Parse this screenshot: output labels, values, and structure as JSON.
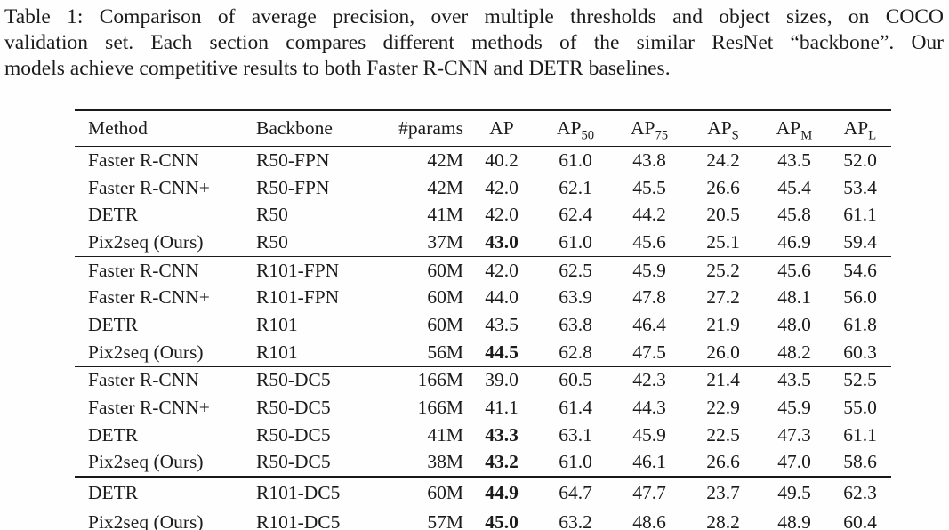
{
  "caption": {
    "lines": [
      "Table 1: Comparison of average precision, over multiple thresholds and object sizes, on COCO",
      "validation set. Each section compares different methods of the similar ResNet “backbone”. Our",
      "models achieve competitive results to both Faster R-CNN and DETR baselines."
    ]
  },
  "table": {
    "columns": [
      {
        "label": "Method",
        "sub": ""
      },
      {
        "label": "Backbone",
        "sub": ""
      },
      {
        "label": "#params",
        "sub": ""
      },
      {
        "label": "AP",
        "sub": ""
      },
      {
        "label": "AP",
        "sub": "50"
      },
      {
        "label": "AP",
        "sub": "75"
      },
      {
        "label": "AP",
        "sub": "S"
      },
      {
        "label": "AP",
        "sub": "M"
      },
      {
        "label": "AP",
        "sub": "L"
      }
    ],
    "sections": [
      {
        "rows": [
          {
            "cells": [
              "Faster R-CNN",
              "R50-FPN",
              "42M",
              "40.2",
              "61.0",
              "43.8",
              "24.2",
              "43.5",
              "52.0"
            ],
            "bold": []
          },
          {
            "cells": [
              "Faster R-CNN+",
              "R50-FPN",
              "42M",
              "42.0",
              "62.1",
              "45.5",
              "26.6",
              "45.4",
              "53.4"
            ],
            "bold": []
          },
          {
            "cells": [
              "DETR",
              "R50",
              "41M",
              "42.0",
              "62.4",
              "44.2",
              "20.5",
              "45.8",
              "61.1"
            ],
            "bold": []
          },
          {
            "cells": [
              "Pix2seq (Ours)",
              "R50",
              "37M",
              "43.0",
              "61.0",
              "45.6",
              "25.1",
              "46.9",
              "59.4"
            ],
            "bold": [
              3
            ]
          }
        ]
      },
      {
        "rows": [
          {
            "cells": [
              "Faster R-CNN",
              "R101-FPN",
              "60M",
              "42.0",
              "62.5",
              "45.9",
              "25.2",
              "45.6",
              "54.6"
            ],
            "bold": []
          },
          {
            "cells": [
              "Faster R-CNN+",
              "R101-FPN",
              "60M",
              "44.0",
              "63.9",
              "47.8",
              "27.2",
              "48.1",
              "56.0"
            ],
            "bold": []
          },
          {
            "cells": [
              "DETR",
              "R101",
              "60M",
              "43.5",
              "63.8",
              "46.4",
              "21.9",
              "48.0",
              "61.8"
            ],
            "bold": []
          },
          {
            "cells": [
              "Pix2seq (Ours)",
              "R101",
              "56M",
              "44.5",
              "62.8",
              "47.5",
              "26.0",
              "48.2",
              "60.3"
            ],
            "bold": [
              3
            ]
          }
        ]
      },
      {
        "rows": [
          {
            "cells": [
              "Faster R-CNN",
              "R50-DC5",
              "166M",
              "39.0",
              "60.5",
              "42.3",
              "21.4",
              "43.5",
              "52.5"
            ],
            "bold": []
          },
          {
            "cells": [
              "Faster R-CNN+",
              "R50-DC5",
              "166M",
              "41.1",
              "61.4",
              "44.3",
              "22.9",
              "45.9",
              "55.0"
            ],
            "bold": []
          },
          {
            "cells": [
              "DETR",
              "R50-DC5",
              "41M",
              "43.3",
              "63.1",
              "45.9",
              "22.5",
              "47.3",
              "61.1"
            ],
            "bold": [
              3
            ]
          },
          {
            "cells": [
              "Pix2seq (Ours)",
              "R50-DC5",
              "38M",
              "43.2",
              "61.0",
              "46.1",
              "26.6",
              "47.0",
              "58.6"
            ],
            "bold": [
              3
            ]
          }
        ]
      },
      {
        "rows": [
          {
            "cells": [
              "DETR",
              "R101-DC5",
              "60M",
              "44.9",
              "64.7",
              "47.7",
              "23.7",
              "49.5",
              "62.3"
            ],
            "bold": [
              3
            ]
          },
          {
            "cells": [
              "Pix2seq (Ours)",
              "R101-DC5",
              "57M",
              "45.0",
              "63.2",
              "48.6",
              "28.2",
              "48.9",
              "60.4"
            ],
            "bold": [
              3
            ]
          }
        ]
      }
    ]
  }
}
